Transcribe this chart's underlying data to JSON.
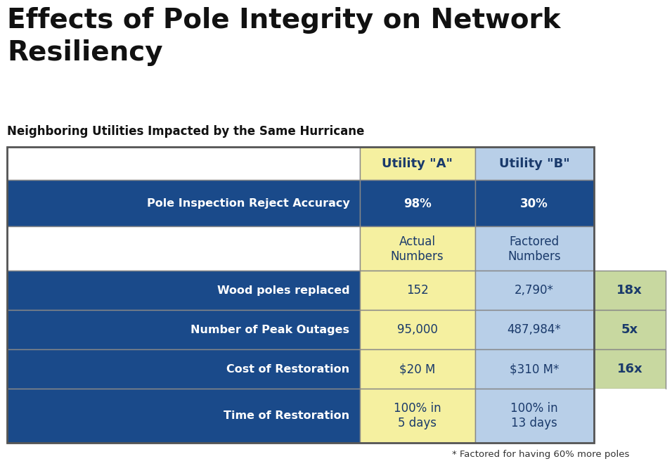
{
  "title": "Effects of Pole Integrity on Network\nResiliency",
  "subtitle": "Neighboring Utilities Impacted by the Same Hurricane",
  "footnote": "* Factored for having 60% more poles",
  "col_headers": [
    "Utility \"A\"",
    "Utility \"B\""
  ],
  "col_header_bg_a": "#f5f0a0",
  "col_header_bg_b": "#b8cfe8",
  "col_header_text_color": "#1a3a6b",
  "dark_blue": "#1a4a8a",
  "yellow": "#f5f0a0",
  "light_blue": "#b8cfe8",
  "light_green": "#c8d8a0",
  "white": "#ffffff",
  "dark_text": "#1a3a6b",
  "white_text": "#ffffff",
  "bg_color": "#ffffff",
  "border_outer": "#888888",
  "border_inner": "#aaaaaa",
  "rows": [
    {
      "label": "Pole Inspection Reject Accuracy",
      "val_a": "98%",
      "val_b": "30%",
      "multiplier": "",
      "label_bg": "#1a4a8a",
      "label_color": "#ffffff",
      "val_a_bg": "#1a4a8a",
      "val_b_bg": "#1a4a8a",
      "val_color": "#ffffff",
      "mult_bg": "none",
      "val_a_bold": true,
      "val_b_bold": true
    },
    {
      "label": "",
      "val_a": "Actual\nNumbers",
      "val_b": "Factored\nNumbers",
      "multiplier": "",
      "label_bg": "#ffffff",
      "label_color": "#1a3a6b",
      "val_a_bg": "#f5f0a0",
      "val_b_bg": "#b8cfe8",
      "val_color": "#1a3a6b",
      "mult_bg": "none",
      "val_a_bold": false,
      "val_b_bold": false
    },
    {
      "label": "Wood poles replaced",
      "val_a": "152",
      "val_b": "2,790*",
      "multiplier": "18x",
      "label_bg": "#1a4a8a",
      "label_color": "#ffffff",
      "val_a_bg": "#f5f0a0",
      "val_b_bg": "#b8cfe8",
      "val_color": "#1a3a6b",
      "mult_bg": "#c8d8a0",
      "val_a_bold": false,
      "val_b_bold": false
    },
    {
      "label": "Number of Peak Outages",
      "val_a": "95,000",
      "val_b": "487,984*",
      "multiplier": "5x",
      "label_bg": "#1a4a8a",
      "label_color": "#ffffff",
      "val_a_bg": "#f5f0a0",
      "val_b_bg": "#b8cfe8",
      "val_color": "#1a3a6b",
      "mult_bg": "#c8d8a0",
      "val_a_bold": false,
      "val_b_bold": false
    },
    {
      "label": "Cost of Restoration",
      "val_a": "$20 M",
      "val_b": "$310 M*",
      "multiplier": "16x",
      "label_bg": "#1a4a8a",
      "label_color": "#ffffff",
      "val_a_bg": "#f5f0a0",
      "val_b_bg": "#b8cfe8",
      "val_color": "#1a3a6b",
      "mult_bg": "#c8d8a0",
      "val_a_bold": false,
      "val_b_bold": false
    },
    {
      "label": "Time of Restoration",
      "val_a": "100% in\n5 days",
      "val_b": "100% in\n13 days",
      "multiplier": "",
      "label_bg": "#1a4a8a",
      "label_color": "#ffffff",
      "val_a_bg": "#f5f0a0",
      "val_b_bg": "#b8cfe8",
      "val_color": "#1a3a6b",
      "mult_bg": "none",
      "val_a_bold": false,
      "val_b_bold": false
    }
  ]
}
